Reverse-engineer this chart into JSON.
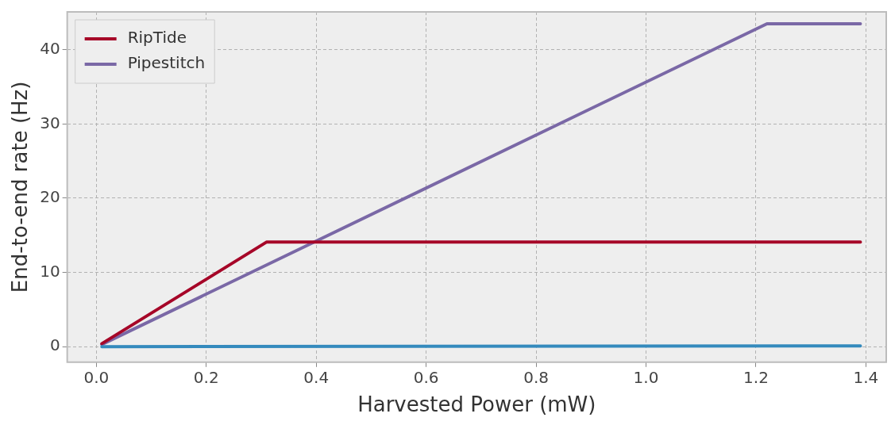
{
  "chart_data": {
    "type": "line",
    "xlabel": "Harvested Power (mW)",
    "ylabel": "End-to-end rate (Hz)",
    "xlim": [
      -0.053,
      1.437
    ],
    "ylim": [
      -2.1,
      45.1
    ],
    "xticks": [
      {
        "value": 0,
        "label": "0.0"
      },
      0.2,
      0.4,
      0.6,
      0.8,
      {
        "value": 1,
        "label": "1.0"
      },
      1.2,
      1.4
    ],
    "yticks": [
      0,
      10,
      20,
      30,
      40
    ],
    "grid": true,
    "legend": "top left",
    "marker": "none",
    "line_style": "solid",
    "series": [
      {
        "color": "#348abd",
        "x": [
          0.01,
          1.39
        ],
        "values": [
          0,
          0.1
        ]
      },
      {
        "name": "RipTide",
        "color": "#a60628",
        "x": [
          0.01,
          0.31,
          1.39
        ],
        "values": [
          0.4,
          14.1,
          14.1
        ]
      },
      {
        "name": "Pipestitch",
        "color": "#7a68a6",
        "x": [
          0.01,
          1.22,
          1.39
        ],
        "values": [
          0.3,
          43.5,
          43.5
        ]
      }
    ]
  }
}
